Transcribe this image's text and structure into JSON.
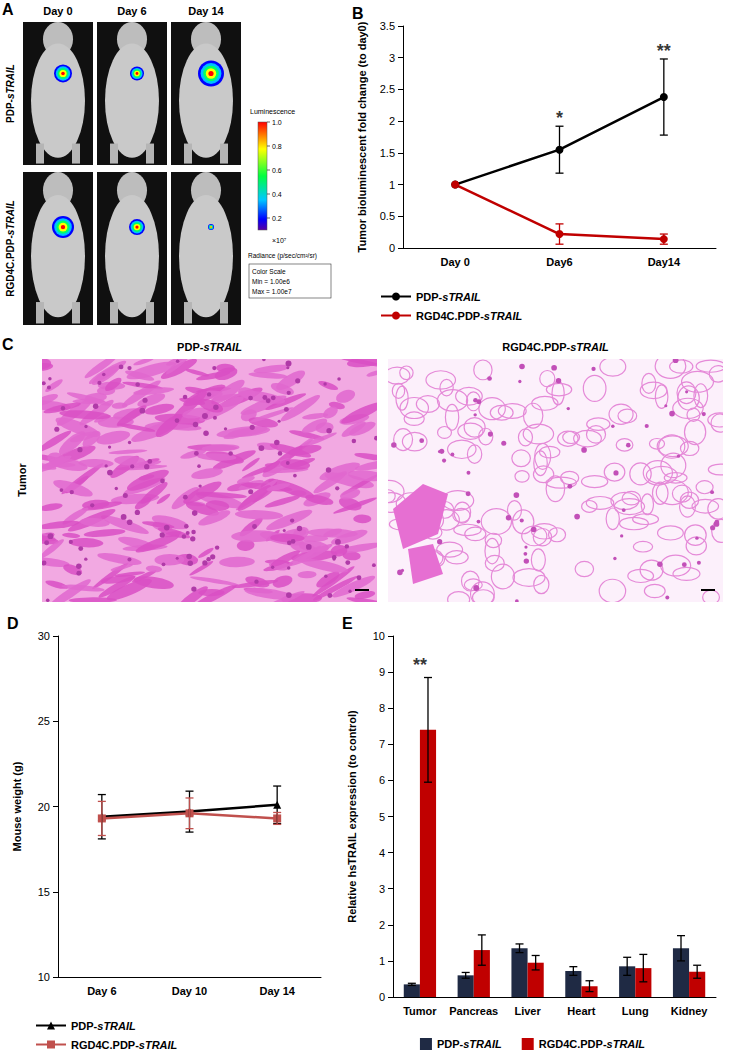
{
  "images": {
    "A": {
      "panel": "A",
      "columns": [
        "Day 0",
        "Day 6",
        "Day 14"
      ],
      "rows": [
        "PDP-sTRAIL",
        "RGD4C.PDP-sTRAIL"
      ],
      "colorbar": {
        "title": "Luminescence",
        "range": [
          0.1,
          1.0
        ],
        "ticks": [
          0.2,
          0.4,
          0.6,
          0.8,
          {
            "value": 1,
            "label": "1.0"
          }
        ],
        "multiplier": "×10⁷",
        "unit": "Radiance (p/sec/cm²/sr)",
        "scale_box": [
          "Color Scale",
          "Min = 1.00e6",
          "Max = 1.00e7"
        ]
      }
    },
    "C": {
      "panel": "C",
      "row_label": "Tumor",
      "columns": [
        "PDP-sTRAIL",
        "RGD4C.PDP-sTRAIL"
      ]
    }
  },
  "chart_data": [
    {
      "panel": "B",
      "type": "line",
      "y_label": "Tumor bioluminescent fold change (to day0)",
      "categories": [
        "Day 0",
        "Day6",
        "Day14"
      ],
      "ylim": [
        0,
        3.5
      ],
      "yticks": [
        0,
        0.5,
        1,
        1.5,
        2,
        2.5,
        3,
        3.5
      ],
      "grid": false,
      "legend": "bottom",
      "series": [
        {
          "name": "PDP-sTRAIL",
          "color": "#000000",
          "marker": "circle",
          "values": [
            1,
            1.55,
            2.38
          ],
          "errors": [
            0,
            0.37,
            0.6
          ]
        },
        {
          "name": "RGD4C.PDP-sTRAIL",
          "color": "#c00000",
          "marker": "circle",
          "values": [
            1,
            0.22,
            0.14
          ],
          "errors": [
            0,
            0.16,
            0.08
          ]
        }
      ],
      "annotations": [
        {
          "category": "Day6",
          "value": 2.05,
          "text": "*"
        },
        {
          "category": "Day14",
          "value": 3.1,
          "text": "**"
        }
      ]
    },
    {
      "panel": "D",
      "type": "line",
      "y_label": "Mouse weight (g)",
      "categories": [
        "Day 6",
        "Day 10",
        "Day 14"
      ],
      "ylim": [
        10,
        30
      ],
      "yticks": [
        10,
        15,
        20,
        25,
        30
      ],
      "grid": false,
      "legend": "bottom",
      "series": [
        {
          "name": "PDP-sTRAIL",
          "color": "#000000",
          "marker": "triangle",
          "values": [
            19.4,
            19.7,
            20.1
          ],
          "errors": [
            1.3,
            1.2,
            1.1
          ]
        },
        {
          "name": "RGD4C.PDP-sTRAIL",
          "color": "#c0504d",
          "marker": "square",
          "values": [
            19.3,
            19.6,
            19.3
          ],
          "errors": [
            1.0,
            0.9,
            0.35
          ]
        }
      ],
      "annotations": []
    },
    {
      "panel": "E",
      "type": "bar",
      "y_label": "Relative hsTRAIL expression (to control)",
      "categories": [
        "Tumor",
        "Pancreas",
        "Liver",
        "Heart",
        "Lung",
        "Kidney"
      ],
      "ylim": [
        0,
        10
      ],
      "yticks": [
        0,
        1,
        2,
        3,
        4,
        5,
        6,
        7,
        8,
        9,
        10
      ],
      "grid": false,
      "legend": "bottom",
      "series": [
        {
          "name": "PDP-sTRAIL",
          "color": "#1f2a44",
          "values": [
            0.35,
            0.6,
            1.35,
            0.72,
            0.85,
            1.35
          ],
          "errors": [
            0.03,
            0.08,
            0.12,
            0.12,
            0.25,
            0.35
          ]
        },
        {
          "name": "RGD4C.PDP-sTRAIL",
          "color": "#c00000",
          "values": [
            7.4,
            1.3,
            0.95,
            0.3,
            0.8,
            0.7
          ],
          "errors": [
            1.45,
            0.42,
            0.2,
            0.15,
            0.38,
            0.18
          ]
        }
      ],
      "annotations": [
        {
          "category": "Tumor",
          "value": 9.2,
          "text": "**"
        }
      ]
    }
  ]
}
